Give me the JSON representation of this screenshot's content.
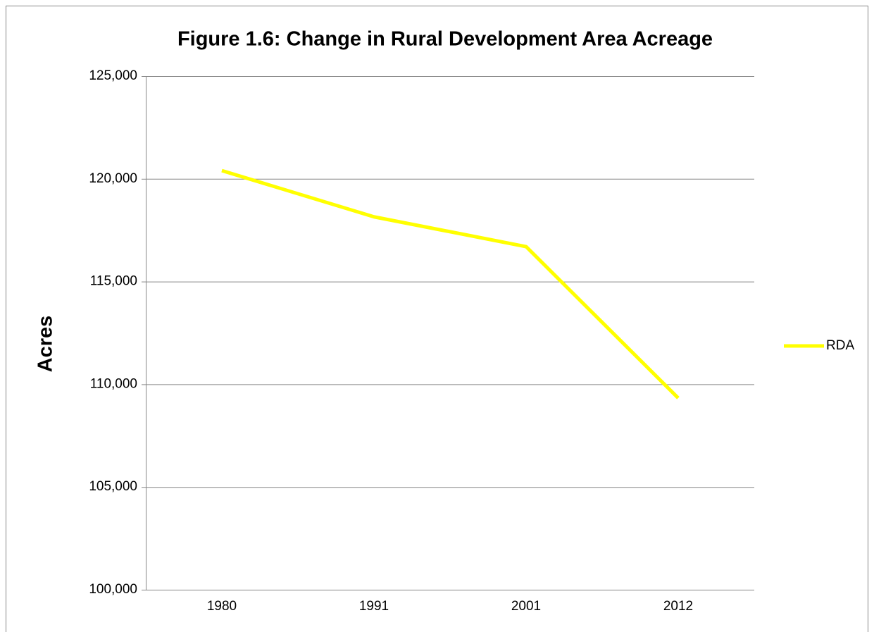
{
  "chart_data": {
    "type": "line",
    "title": "Figure 1.6: Change in Rural Development Area Acreage",
    "y_label": "Acres",
    "categories": [
      "1980",
      "1991",
      "2001",
      "2012"
    ],
    "series": [
      {
        "name": "RDA",
        "color": "#ffff00",
        "values": [
          120400,
          118150,
          116700,
          109330
        ]
      }
    ],
    "ylim": [
      100000,
      125000
    ],
    "yticks": [
      {
        "value": 100000,
        "label": "100,000"
      },
      {
        "value": 105000,
        "label": "105,000"
      },
      {
        "value": 110000,
        "label": "110,000"
      },
      {
        "value": 115000,
        "label": "115,000"
      },
      {
        "value": 120000,
        "label": "120,000"
      },
      {
        "value": 125000,
        "label": "125,000"
      }
    ],
    "grid": true,
    "legend": "right"
  }
}
